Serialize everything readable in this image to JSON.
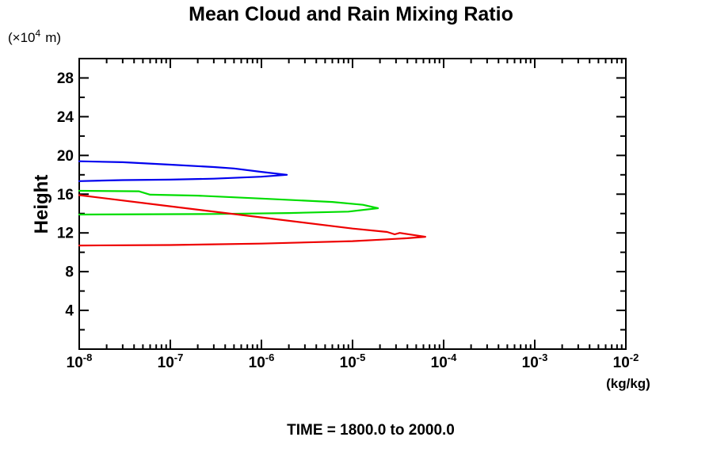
{
  "title": "Mean Cloud and Rain Mixing Ratio",
  "y_unit_label": {
    "prefix": "(×10",
    "sup": "4",
    "suffix": "m)"
  },
  "y_axis_label": "Height",
  "x_unit_label": "(kg/kg)",
  "time_caption": "TIME = 1800.0 to 2000.0",
  "chart_data": {
    "type": "line",
    "title": "Mean Cloud and Rain Mixing Ratio",
    "xlabel": "(kg/kg)",
    "ylabel": "Height (×10^4 m)",
    "x_scale": "log10",
    "xlim_exp": [
      -8,
      -2
    ],
    "ylim": [
      0,
      30
    ],
    "x_tick_exponents": [
      -8,
      -7,
      -6,
      -5,
      -4,
      -3,
      -2
    ],
    "y_major_ticks": [
      4,
      8,
      12,
      16,
      20,
      24,
      28
    ],
    "y_minor_ticks": [
      2,
      6,
      10,
      14,
      18,
      22,
      26,
      30
    ],
    "grid": false,
    "legend": "none",
    "annotation": "TIME = 1800.0 to 2000.0",
    "frame_color": "#000000",
    "series": [
      {
        "name": "blue",
        "color": "#0000ee",
        "points": [
          [
            1e-08,
            19.4
          ],
          [
            3e-08,
            19.3
          ],
          [
            1e-07,
            19.05
          ],
          [
            3e-07,
            18.8
          ],
          [
            5e-07,
            18.65
          ],
          [
            1e-06,
            18.3
          ],
          [
            1.9e-06,
            18.0
          ],
          [
            1e-06,
            17.8
          ],
          [
            3e-07,
            17.6
          ],
          [
            1e-07,
            17.5
          ],
          [
            3e-08,
            17.45
          ],
          [
            1e-08,
            17.35
          ]
        ]
      },
      {
        "name": "green",
        "color": "#00dd00",
        "points": [
          [
            1e-08,
            16.35
          ],
          [
            4.5e-08,
            16.3
          ],
          [
            6e-08,
            15.95
          ],
          [
            2e-07,
            15.85
          ],
          [
            1e-06,
            15.55
          ],
          [
            6e-06,
            15.2
          ],
          [
            1.3e-05,
            14.9
          ],
          [
            1.9e-05,
            14.55
          ],
          [
            9e-06,
            14.2
          ],
          [
            2e-06,
            14.05
          ],
          [
            3e-07,
            13.95
          ],
          [
            1e-08,
            13.9
          ]
        ]
      },
      {
        "name": "red",
        "color": "#ee0000",
        "points": [
          [
            1e-08,
            15.9
          ],
          [
            1e-07,
            14.75
          ],
          [
            1e-06,
            13.6
          ],
          [
            1e-05,
            12.45
          ],
          [
            2.4e-05,
            12.1
          ],
          [
            2.9e-05,
            11.85
          ],
          [
            3.3e-05,
            12.0
          ],
          [
            4.5e-05,
            11.8
          ],
          [
            6.3e-05,
            11.6
          ],
          [
            4e-05,
            11.45
          ],
          [
            2e-05,
            11.3
          ],
          [
            1e-05,
            11.15
          ],
          [
            1e-06,
            10.9
          ],
          [
            1e-07,
            10.75
          ],
          [
            1e-08,
            10.7
          ]
        ]
      }
    ]
  }
}
